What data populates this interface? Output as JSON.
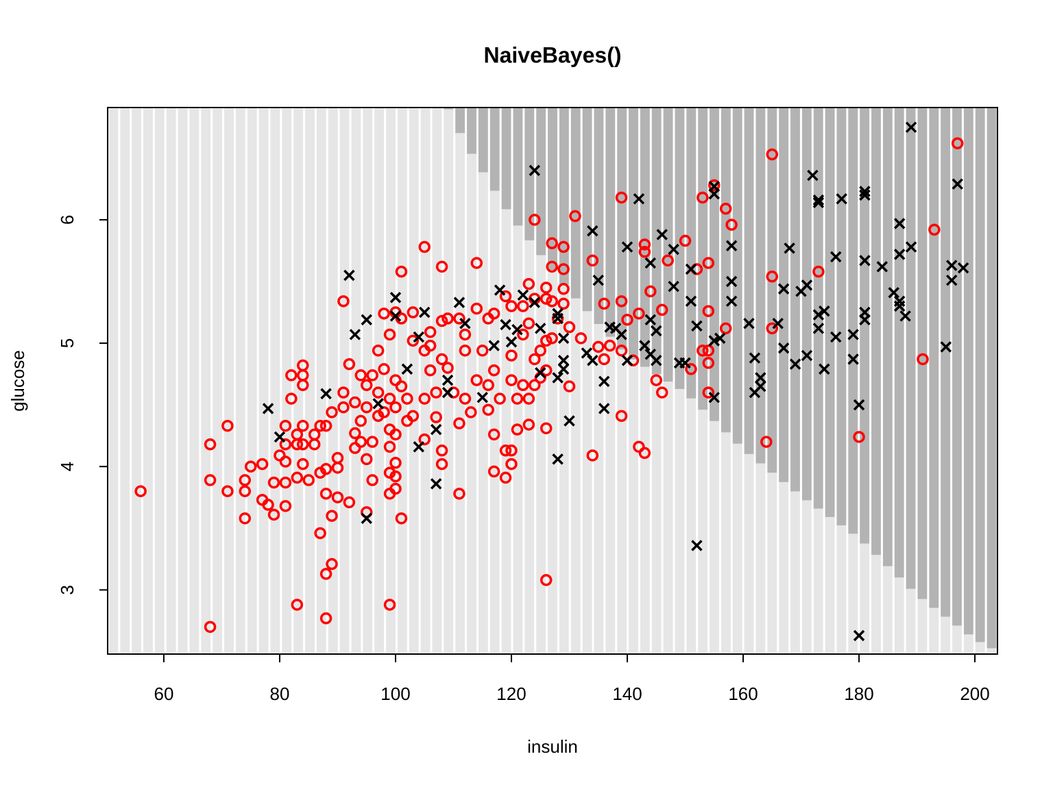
{
  "chart_data": {
    "type": "scatter",
    "title": "NaiveBayes()",
    "x_label": "insulin",
    "y_label": "glucose",
    "xlim": [
      50.3,
      203.9
    ],
    "ylim": [
      2.48,
      6.91
    ],
    "xticks": [
      60,
      80,
      100,
      120,
      140,
      160,
      180,
      200
    ],
    "yticks": [
      3,
      4,
      5,
      6
    ],
    "region_colors": [
      "#e6e6e6",
      "#b3b3b3"
    ],
    "decision_boundary": {
      "x": [
        109,
        112,
        120,
        130,
        140,
        150,
        160,
        170,
        180,
        190,
        200,
        204
      ],
      "y": [
        6.91,
        6.62,
        6.02,
        5.42,
        4.9,
        4.6,
        4.14,
        3.76,
        3.42,
        2.96,
        2.6,
        2.5
      ]
    },
    "series": [
      {
        "color": "#ff0000",
        "marker": "circle",
        "x": [
          56,
          68,
          68,
          68,
          71,
          71,
          74,
          74,
          74,
          75,
          77,
          77,
          78,
          79,
          79,
          80,
          81,
          81,
          81,
          81,
          81,
          82,
          82,
          83,
          83,
          83,
          83,
          84,
          84,
          84,
          84,
          84,
          84,
          85,
          86,
          86,
          87,
          87,
          87,
          88,
          88,
          88,
          88,
          88,
          89,
          89,
          89,
          90,
          90,
          90,
          91,
          91,
          91,
          92,
          92,
          93,
          93,
          93,
          94,
          94,
          94,
          95,
          95,
          95,
          95,
          96,
          96,
          96,
          97,
          97,
          97,
          98,
          98,
          98,
          99,
          99,
          99,
          99,
          99,
          99,
          99,
          100,
          100,
          100,
          100,
          100,
          100,
          100,
          101,
          101,
          101,
          101,
          102,
          102,
          103,
          103,
          103,
          105,
          105,
          105,
          105,
          106,
          106,
          106,
          107,
          107,
          108,
          108,
          108,
          108,
          108,
          109,
          109,
          110,
          111,
          111,
          111,
          112,
          112,
          112,
          113,
          114,
          114,
          114,
          115,
          116,
          116,
          116,
          117,
          117,
          117,
          117,
          118,
          119,
          119,
          119,
          120,
          120,
          120,
          120,
          120,
          121,
          121,
          122,
          122,
          122,
          123,
          123,
          123,
          123,
          124,
          124,
          124,
          124,
          125,
          125,
          126,
          126,
          126,
          126,
          126,
          126,
          127,
          127,
          127,
          127,
          128,
          129,
          129,
          129,
          129,
          130,
          130,
          131,
          132,
          134,
          134,
          135,
          136,
          136,
          137,
          139,
          139,
          139,
          139,
          140,
          141,
          142,
          142,
          143,
          143,
          143,
          144,
          145,
          146,
          146,
          147,
          150,
          151,
          152,
          153,
          153,
          154,
          154,
          154,
          154,
          154,
          155,
          157,
          157,
          158,
          164,
          165,
          165,
          165,
          173,
          180,
          191,
          193,
          197
        ],
        "y": [
          3.8,
          4.18,
          3.89,
          2.7,
          4.33,
          3.8,
          3.89,
          3.8,
          3.58,
          4.0,
          4.02,
          3.73,
          3.69,
          3.87,
          3.61,
          4.09,
          4.33,
          4.18,
          4.04,
          3.87,
          3.68,
          4.74,
          4.55,
          4.26,
          4.18,
          3.91,
          2.88,
          4.82,
          4.74,
          4.66,
          4.33,
          4.18,
          4.02,
          3.89,
          4.26,
          4.18,
          4.33,
          3.95,
          3.46,
          4.33,
          3.98,
          3.78,
          3.13,
          2.77,
          4.44,
          3.6,
          3.21,
          4.07,
          3.99,
          3.75,
          5.34,
          4.6,
          4.48,
          4.83,
          3.71,
          4.52,
          4.27,
          4.15,
          4.74,
          4.37,
          4.2,
          4.66,
          4.48,
          4.06,
          3.63,
          4.74,
          4.2,
          3.89,
          4.94,
          4.6,
          4.41,
          5.24,
          4.79,
          4.44,
          5.07,
          4.55,
          4.3,
          4.16,
          3.95,
          3.78,
          2.88,
          5.25,
          4.7,
          4.48,
          4.26,
          4.03,
          3.92,
          3.82,
          5.58,
          5.2,
          4.65,
          3.58,
          4.55,
          4.37,
          5.25,
          5.02,
          4.41,
          5.78,
          4.94,
          4.55,
          4.22,
          5.09,
          4.98,
          4.78,
          4.6,
          4.4,
          5.62,
          5.18,
          4.87,
          4.13,
          4.02,
          5.2,
          4.8,
          4.6,
          5.2,
          4.35,
          3.78,
          5.07,
          4.94,
          4.55,
          4.44,
          5.65,
          5.28,
          4.7,
          4.94,
          5.2,
          4.66,
          4.46,
          5.24,
          4.78,
          4.26,
          3.96,
          4.55,
          5.38,
          4.13,
          3.91,
          5.3,
          4.9,
          4.7,
          4.13,
          4.02,
          4.55,
          4.3,
          5.3,
          5.07,
          4.66,
          5.48,
          5.16,
          4.55,
          4.34,
          6.0,
          5.36,
          4.87,
          4.66,
          4.94,
          4.72,
          5.45,
          5.36,
          5.02,
          4.78,
          4.31,
          3.08,
          5.81,
          5.62,
          5.34,
          5.04,
          5.2,
          5.78,
          5.6,
          5.44,
          5.32,
          5.13,
          4.65,
          6.03,
          5.04,
          5.67,
          4.09,
          4.97,
          5.32,
          4.87,
          4.98,
          6.18,
          5.34,
          4.94,
          4.41,
          5.19,
          4.86,
          5.24,
          4.16,
          5.8,
          5.74,
          4.11,
          5.42,
          4.7,
          5.27,
          4.6,
          5.67,
          5.83,
          4.79,
          5.6,
          6.18,
          4.94,
          5.65,
          5.26,
          4.94,
          4.84,
          4.6,
          6.28,
          6.09,
          5.12,
          5.96,
          4.2,
          6.53,
          5.54,
          5.12,
          5.58,
          4.24,
          4.87,
          5.92,
          6.62
        ]
      },
      {
        "color": "#000000",
        "marker": "x",
        "x": [
          78,
          80,
          88,
          92,
          93,
          95,
          95,
          97,
          100,
          100,
          102,
          104,
          104,
          105,
          107,
          107,
          109,
          109,
          111,
          112,
          115,
          117,
          118,
          119,
          120,
          121,
          122,
          124,
          124,
          125,
          125,
          128,
          128,
          128,
          128,
          129,
          129,
          129,
          130,
          133,
          134,
          134,
          135,
          136,
          136,
          137,
          138,
          139,
          140,
          140,
          142,
          143,
          144,
          144,
          144,
          145,
          145,
          146,
          148,
          148,
          149,
          150,
          151,
          151,
          152,
          152,
          155,
          155,
          155,
          155,
          156,
          158,
          158,
          158,
          161,
          162,
          162,
          163,
          163,
          166,
          167,
          167,
          168,
          169,
          170,
          171,
          171,
          172,
          173,
          173,
          173,
          173,
          174,
          174,
          176,
          176,
          177,
          179,
          179,
          180,
          180,
          181,
          181,
          181,
          181,
          181,
          184,
          186,
          187,
          187,
          187,
          187,
          188,
          189,
          189,
          195,
          196,
          196,
          197,
          198
        ],
        "y": [
          4.47,
          4.24,
          4.59,
          5.55,
          5.07,
          5.19,
          3.58,
          4.51,
          5.37,
          5.22,
          4.79,
          5.05,
          4.16,
          5.25,
          4.3,
          3.86,
          4.7,
          4.6,
          5.33,
          5.16,
          4.56,
          4.98,
          5.43,
          5.15,
          5.01,
          5.11,
          5.39,
          6.4,
          5.33,
          5.12,
          4.76,
          5.24,
          5.2,
          4.72,
          4.06,
          5.04,
          4.86,
          4.79,
          4.37,
          4.92,
          5.91,
          4.86,
          5.51,
          4.69,
          4.47,
          5.13,
          5.12,
          5.07,
          5.78,
          4.86,
          6.17,
          4.98,
          5.65,
          5.19,
          4.91,
          5.1,
          4.86,
          5.88,
          5.76,
          5.46,
          4.84,
          4.84,
          5.6,
          5.34,
          5.14,
          3.36,
          6.27,
          6.21,
          4.56,
          5.02,
          5.04,
          5.79,
          5.5,
          5.34,
          5.16,
          4.88,
          4.6,
          4.72,
          4.65,
          5.16,
          5.44,
          4.96,
          5.77,
          4.83,
          5.42,
          5.47,
          4.9,
          6.36,
          6.16,
          6.14,
          5.23,
          5.12,
          5.26,
          4.79,
          5.7,
          5.05,
          6.17,
          5.07,
          4.87,
          4.5,
          2.63,
          6.23,
          6.2,
          5.67,
          5.25,
          5.19,
          5.62,
          5.41,
          5.97,
          5.72,
          5.34,
          5.3,
          5.22,
          6.75,
          5.78,
          4.97,
          5.63,
          5.51,
          6.29,
          5.61
        ]
      }
    ]
  }
}
